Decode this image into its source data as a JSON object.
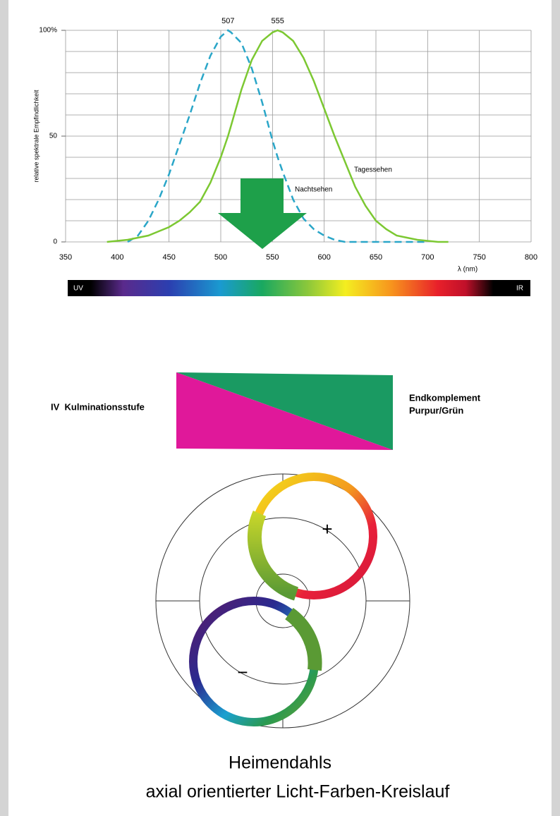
{
  "chart_data": {
    "type": "line",
    "y_label": "relative spektrale Empfindlichkeit",
    "x_label": "λ (nm)",
    "x": [
      390,
      400,
      410,
      420,
      430,
      440,
      450,
      460,
      470,
      480,
      490,
      500,
      507,
      510,
      520,
      530,
      540,
      550,
      555,
      560,
      570,
      580,
      590,
      600,
      610,
      620,
      630,
      640,
      650,
      660,
      670,
      680,
      690,
      700,
      710,
      720
    ],
    "series": [
      {
        "name": "Nachtsehen",
        "color": "#2aa6c8",
        "dashed": true,
        "values": [
          null,
          null,
          0,
          3,
          10,
          20,
          32,
          46,
          60,
          75,
          88,
          97,
          100,
          99,
          94,
          82,
          66,
          48,
          40,
          33,
          20,
          11,
          6,
          3,
          1,
          0,
          0,
          0,
          0,
          0,
          0,
          0,
          0,
          0,
          null,
          null
        ]
      },
      {
        "name": "Tagessehen",
        "color": "#7cc832",
        "dashed": false,
        "values": [
          0,
          0.5,
          1,
          2,
          3,
          5,
          7,
          10,
          14,
          19,
          28,
          40,
          50,
          55,
          72,
          86,
          95,
          99,
          100,
          99,
          95,
          87,
          76,
          63,
          50,
          38,
          26,
          17,
          10,
          6,
          3,
          2,
          1,
          0.5,
          0,
          0
        ]
      }
    ],
    "peak_labels": [
      507,
      555
    ],
    "xlim": [
      350,
      800
    ],
    "xticks": [
      350,
      400,
      450,
      500,
      550,
      600,
      650,
      700,
      750,
      800
    ],
    "ylim": [
      0,
      100
    ],
    "yticks": [
      0,
      50,
      {
        "value": 100,
        "label": "100%"
      }
    ],
    "ygrid": [
      0,
      10,
      20,
      30,
      40,
      50,
      60,
      70,
      80,
      90,
      100
    ],
    "grid": true
  },
  "spectrum": {
    "left": "UV",
    "right": "IR"
  },
  "stage": {
    "label": "IV  Kulminationsstufe",
    "complement_line1": "Endkomplement",
    "complement_line2": "Purpur/Grün"
  },
  "diagram": {
    "plus": "+",
    "minus": "−"
  },
  "caption": {
    "line1": "Heimendahls",
    "line2": "axial orientierter Licht-Farben-Kreislauf"
  }
}
